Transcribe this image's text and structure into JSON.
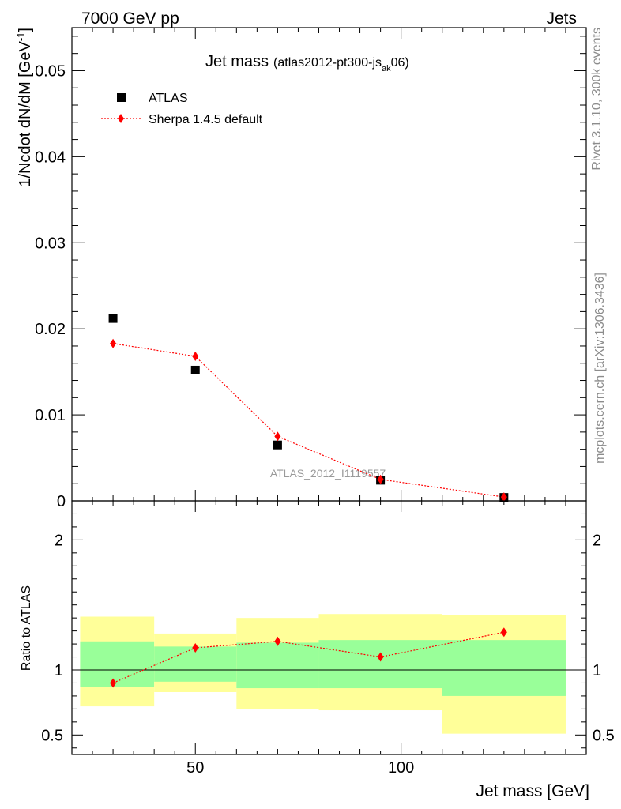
{
  "header": {
    "left": "7000 GeV pp",
    "right": "Jets"
  },
  "side_text": {
    "upper": "Rivet 3.1.10,  300k events",
    "lower": "mcplots.cern.ch [arXiv:1306.3436]"
  },
  "watermark": "ATLAS_2012_I1119557",
  "colors": {
    "data": "#000000",
    "mc": "#ff0000",
    "band_inner": "#99ff99",
    "band_outer": "#ffff99"
  },
  "chart_data": [
    {
      "type": "scatter",
      "title": "Jet mass",
      "subtitle": {
        "prefix": "(atlas2012-pt300-js",
        "sub": "ak",
        "suffix": "06)"
      },
      "ylabel": {
        "main": "1/Ncdot dN/dM [GeV",
        "sup": "-1",
        "end": "]"
      },
      "xlim": [
        20,
        145
      ],
      "ylim": [
        0,
        0.055
      ],
      "yticks": [
        0,
        0.01,
        0.02,
        0.03,
        0.04,
        0.05
      ],
      "ytick_labels": [
        "0",
        "0.01",
        "0.02",
        "0.03",
        "0.04",
        "0.05"
      ],
      "legend": {
        "placement": "top-left",
        "entries": [
          "ATLAS",
          "Sherpa 1.4.5 default"
        ]
      },
      "series": [
        {
          "name": "ATLAS",
          "marker": "square",
          "x": [
            30,
            50,
            70,
            95,
            125
          ],
          "y": [
            0.0212,
            0.0152,
            0.0065,
            0.0024,
            0.0004
          ]
        },
        {
          "name": "Sherpa 1.4.5 default",
          "marker": "diamond",
          "line": "dotted",
          "x": [
            30,
            50,
            70,
            95,
            125
          ],
          "y": [
            0.0183,
            0.0168,
            0.0075,
            0.0025,
            0.00045
          ]
        }
      ]
    },
    {
      "type": "line",
      "ylabel": "Ratio to ATLAS",
      "xlabel": "Jet mass [GeV]",
      "xlim": [
        20,
        145
      ],
      "ylim": [
        0.35,
        2.3
      ],
      "xticks": [
        50,
        100
      ],
      "xtick_labels": [
        "50",
        "100"
      ],
      "yticks": [
        0.5,
        1,
        2
      ],
      "ytick_labels": [
        "0.5",
        "1",
        "2"
      ],
      "reference": 1,
      "bands": [
        {
          "x0": 22,
          "x1": 40,
          "inner": [
            0.87,
            1.22
          ],
          "outer": [
            0.72,
            1.41
          ]
        },
        {
          "x0": 40,
          "x1": 60,
          "inner": [
            0.91,
            1.18
          ],
          "outer": [
            0.83,
            1.28
          ]
        },
        {
          "x0": 60,
          "x1": 80,
          "inner": [
            0.86,
            1.21
          ],
          "outer": [
            0.7,
            1.4
          ]
        },
        {
          "x0": 80,
          "x1": 110,
          "inner": [
            0.86,
            1.23
          ],
          "outer": [
            0.69,
            1.43
          ]
        },
        {
          "x0": 110,
          "x1": 140,
          "inner": [
            0.8,
            1.23
          ],
          "outer": [
            0.51,
            1.42
          ]
        }
      ],
      "series": [
        {
          "name": "Sherpa 1.4.5 default",
          "marker": "diamond",
          "x": [
            30,
            50,
            70,
            95,
            125
          ],
          "y": [
            0.9,
            1.17,
            1.22,
            1.1,
            1.29
          ]
        }
      ]
    }
  ]
}
